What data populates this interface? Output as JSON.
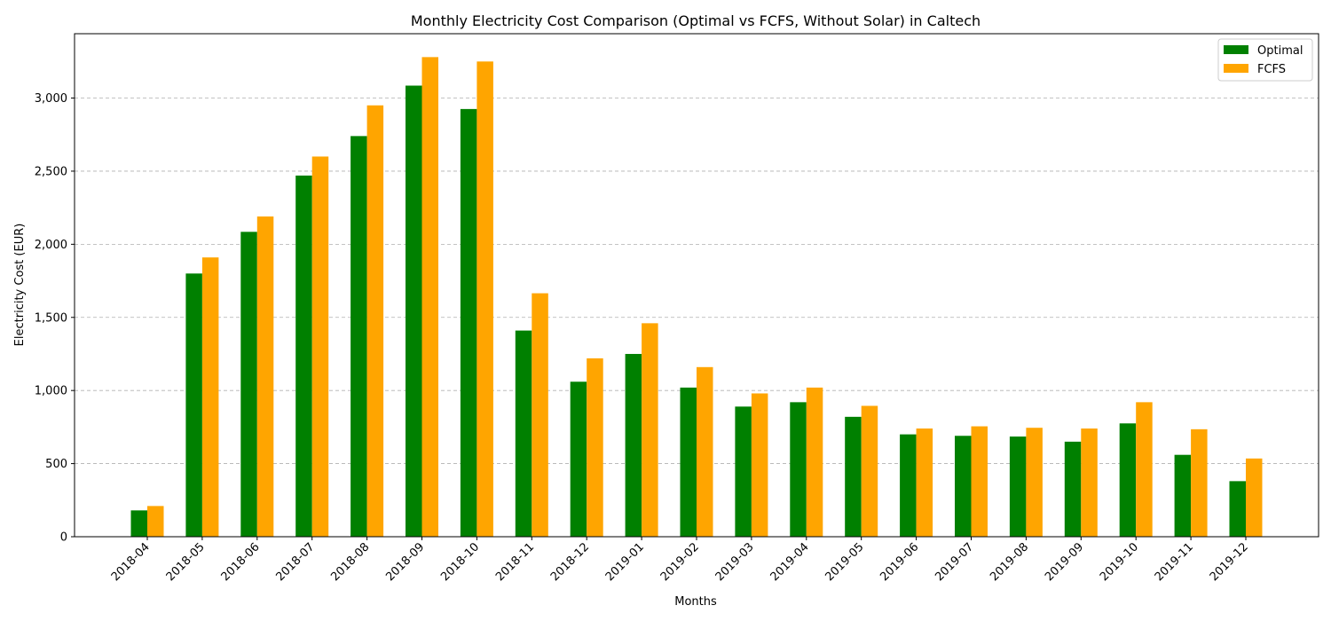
{
  "chart_data": {
    "type": "bar",
    "title": "Monthly Electricity Cost Comparison (Optimal vs FCFS, Without Solar) in Caltech",
    "xlabel": "Months",
    "ylabel": "Electricity Cost (EUR)",
    "ylim": [
      0,
      3440
    ],
    "yticks": [
      0,
      500,
      1000,
      1500,
      2000,
      2500,
      3000
    ],
    "ytick_labels": [
      "0",
      "500",
      "1,000",
      "1,500",
      "2,000",
      "2,500",
      "3,000"
    ],
    "grid": "y, dashed",
    "legend_position": "top-right",
    "categories": [
      "2018-04",
      "2018-05",
      "2018-06",
      "2018-07",
      "2018-08",
      "2018-09",
      "2018-10",
      "2018-11",
      "2018-12",
      "2019-01",
      "2019-02",
      "2019-03",
      "2019-04",
      "2019-05",
      "2019-06",
      "2019-07",
      "2019-08",
      "2019-09",
      "2019-10",
      "2019-11",
      "2019-12"
    ],
    "series": [
      {
        "name": "Optimal",
        "color": "#008000",
        "values": [
          180,
          1800,
          2085,
          2470,
          2740,
          3085,
          2925,
          1410,
          1060,
          1250,
          1020,
          890,
          920,
          820,
          700,
          690,
          685,
          650,
          775,
          560,
          380
        ]
      },
      {
        "name": "FCFS",
        "color": "#FFA500",
        "values": [
          210,
          1910,
          2190,
          2600,
          2950,
          3280,
          3250,
          1665,
          1220,
          1460,
          1160,
          980,
          1020,
          895,
          740,
          755,
          745,
          740,
          920,
          735,
          535
        ]
      }
    ]
  }
}
